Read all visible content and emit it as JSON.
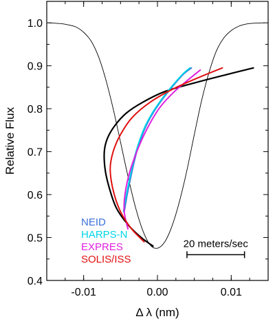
{
  "chart_data": {
    "type": "line",
    "title": "",
    "xlabel": "Δ λ (nm)",
    "ylabel": "Relative Flux",
    "xlim": [
      -0.015,
      0.015
    ],
    "ylim": [
      0.4,
      1.05
    ],
    "x_ticks": [
      -0.01,
      0.0,
      0.01
    ],
    "x_tick_labels": [
      "-0.01",
      "0.00",
      "0.01"
    ],
    "y_ticks": [
      0.4,
      0.5,
      0.6,
      0.7,
      0.8,
      0.9,
      1.0
    ],
    "y_tick_labels": [
      "0.4",
      "0.5",
      "0.6",
      "0.7",
      "0.8",
      "0.9",
      "1.0"
    ],
    "grid": false,
    "legend_position": "bottom-left",
    "line_profile": {
      "color": "#000000",
      "x": [
        -0.0148,
        -0.013,
        -0.012,
        -0.011,
        -0.01,
        -0.009,
        -0.008,
        -0.007,
        -0.006,
        -0.005,
        -0.004,
        -0.003,
        -0.002,
        -0.001,
        0.0,
        0.001,
        0.002,
        0.003,
        0.004,
        0.005,
        0.006,
        0.007,
        0.008,
        0.009,
        0.01,
        0.011,
        0.012,
        0.013,
        0.0145
      ],
      "y": [
        1.0,
        0.998,
        0.995,
        0.99,
        0.978,
        0.958,
        0.922,
        0.868,
        0.8,
        0.722,
        0.643,
        0.572,
        0.517,
        0.483,
        0.475,
        0.49,
        0.528,
        0.585,
        0.657,
        0.74,
        0.82,
        0.885,
        0.935,
        0.965,
        0.982,
        0.992,
        0.997,
        0.999,
        1.0
      ]
    },
    "series": [
      {
        "name": "black-bisector",
        "color": "#000000",
        "x": [
          -0.0006,
          -0.0022,
          -0.004,
          -0.0056,
          -0.0066,
          -0.0071,
          -0.0072,
          -0.0068,
          -0.0058,
          -0.0042,
          -0.002,
          0.001,
          0.005,
          0.0095,
          0.013
        ],
        "y": [
          0.48,
          0.5,
          0.53,
          0.57,
          0.62,
          0.66,
          0.7,
          0.73,
          0.76,
          0.79,
          0.815,
          0.84,
          0.86,
          0.88,
          0.895
        ]
      },
      {
        "name": "NEID",
        "color": "#3a6fd8",
        "x": [
          -0.0045,
          -0.0041,
          -0.0035,
          -0.0028,
          -0.0018,
          -0.0006,
          0.0008,
          0.0022,
          0.0035,
          0.0046
        ],
        "y": [
          0.56,
          0.6,
          0.65,
          0.7,
          0.75,
          0.79,
          0.825,
          0.855,
          0.88,
          0.895
        ]
      },
      {
        "name": "HARPS-N",
        "color": "#00d5e8",
        "x": [
          -0.0046,
          -0.0042,
          -0.0036,
          -0.0029,
          -0.0019,
          -0.0007,
          0.0007,
          0.0021,
          0.0034,
          0.0044
        ],
        "y": [
          0.56,
          0.6,
          0.65,
          0.7,
          0.75,
          0.79,
          0.825,
          0.855,
          0.88,
          0.895
        ]
      },
      {
        "name": "EXPRES",
        "color": "#e020e0",
        "x": [
          -0.004,
          -0.0045,
          -0.0044,
          -0.0038,
          -0.0028,
          -0.0015,
          0.0002,
          0.002,
          0.004,
          0.0058
        ],
        "y": [
          0.52,
          0.56,
          0.6,
          0.65,
          0.7,
          0.75,
          0.8,
          0.835,
          0.865,
          0.89
        ]
      },
      {
        "name": "SOLIS/ISS",
        "color": "#e01010",
        "x": [
          -0.0018,
          -0.0035,
          -0.005,
          -0.006,
          -0.0064,
          -0.006,
          -0.005,
          -0.0034,
          -0.001,
          0.002,
          0.0055,
          0.0088
        ],
        "y": [
          0.49,
          0.52,
          0.56,
          0.61,
          0.66,
          0.7,
          0.74,
          0.78,
          0.815,
          0.845,
          0.872,
          0.895
        ]
      }
    ],
    "legend": [
      {
        "label": "NEID",
        "color": "#3a6fd8"
      },
      {
        "label": "HARPS-N",
        "color": "#00d5e8"
      },
      {
        "label": "EXPRES",
        "color": "#e020e0"
      },
      {
        "label": "SOLIS/ISS",
        "color": "#e01010"
      }
    ],
    "scale_bar": {
      "label": "20 meters/sec",
      "x_start": 0.004,
      "x_end": 0.0118,
      "y": 0.46
    }
  }
}
